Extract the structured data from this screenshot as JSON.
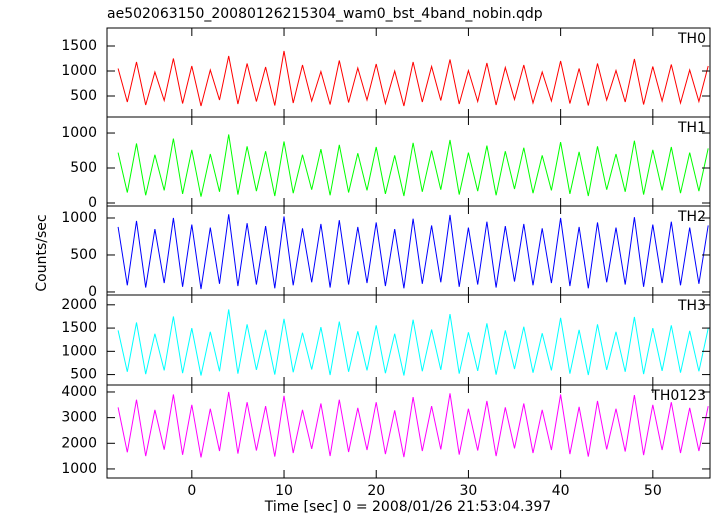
{
  "chart_data": [
    {
      "type": "line",
      "title": "ae502063150_20080126215304_wam0_bst_4band_nobin.qdp",
      "x": [
        -8,
        -7,
        -6,
        -5,
        -4,
        -3,
        -2,
        -1,
        0,
        1,
        2,
        3,
        4,
        5,
        6,
        7,
        8,
        9,
        10,
        11,
        12,
        13,
        14,
        15,
        16,
        17,
        18,
        19,
        20,
        21,
        22,
        23,
        24,
        25,
        26,
        27,
        28,
        29,
        30,
        31,
        32,
        33,
        34,
        35,
        36,
        37,
        38,
        39,
        40,
        41,
        42,
        43,
        44,
        45,
        46,
        47,
        48,
        49,
        50,
        51,
        52,
        53,
        54,
        55,
        56
      ],
      "series": [
        {
          "name": "TH0",
          "color": "#ff0000",
          "values": [
            1050,
            380,
            1180,
            320,
            980,
            410,
            1250,
            350,
            1100,
            300,
            1020,
            420,
            1300,
            340,
            1150,
            390,
            1080,
            310,
            1400,
            360,
            1120,
            400,
            990,
            330,
            1210,
            370,
            1060,
            420,
            1140,
            350,
            1000,
            300,
            1180,
            380,
            1090,
            410,
            1230,
            340,
            1010,
            390,
            1160,
            320,
            1070,
            430,
            1120,
            360,
            980,
            400,
            1200,
            350,
            1050,
            310,
            1150,
            420,
            1010,
            380,
            1240,
            330,
            1090,
            400,
            1130,
            360,
            1020,
            390,
            1100
          ]
        }
      ],
      "xlim": [
        -9.2,
        56.2
      ],
      "ylim": [
        80,
        1860
      ],
      "yticks": [
        500,
        1000,
        1500
      ]
    },
    {
      "type": "line",
      "x": [
        -8,
        -7,
        -6,
        -5,
        -4,
        -3,
        -2,
        -1,
        0,
        1,
        2,
        3,
        4,
        5,
        6,
        7,
        8,
        9,
        10,
        11,
        12,
        13,
        14,
        15,
        16,
        17,
        18,
        19,
        20,
        21,
        22,
        23,
        24,
        25,
        26,
        27,
        28,
        29,
        30,
        31,
        32,
        33,
        34,
        35,
        36,
        37,
        38,
        39,
        40,
        41,
        42,
        43,
        44,
        45,
        46,
        47,
        48,
        49,
        50,
        51,
        52,
        53,
        54,
        55,
        56
      ],
      "series": [
        {
          "name": "TH1",
          "color": "#00ff00",
          "values": [
            720,
            150,
            850,
            110,
            690,
            180,
            920,
            130,
            760,
            90,
            700,
            160,
            980,
            120,
            810,
            170,
            740,
            100,
            880,
            140,
            690,
            190,
            770,
            110,
            830,
            150,
            710,
            180,
            800,
            130,
            680,
            100,
            860,
            160,
            750,
            190,
            900,
            120,
            720,
            170,
            820,
            110,
            740,
            200,
            790,
            140,
            680,
            180,
            870,
            130,
            730,
            100,
            810,
            190,
            700,
            160,
            890,
            120,
            760,
            180,
            800,
            140,
            720,
            170,
            780
          ]
        }
      ],
      "xlim": [
        -9.2,
        56.2
      ],
      "ylim": [
        -43,
        1229
      ],
      "yticks": [
        0,
        500,
        1000
      ]
    },
    {
      "type": "line",
      "ylabel": "Counts/sec",
      "x": [
        -8,
        -7,
        -6,
        -5,
        -4,
        -3,
        -2,
        -1,
        0,
        1,
        2,
        3,
        4,
        5,
        6,
        7,
        8,
        9,
        10,
        11,
        12,
        13,
        14,
        15,
        16,
        17,
        18,
        19,
        20,
        21,
        22,
        23,
        24,
        25,
        26,
        27,
        28,
        29,
        30,
        31,
        32,
        33,
        34,
        35,
        36,
        37,
        38,
        39,
        40,
        41,
        42,
        43,
        44,
        45,
        46,
        47,
        48,
        49,
        50,
        51,
        52,
        53,
        54,
        55,
        56
      ],
      "series": [
        {
          "name": "TH2",
          "color": "#0000ff",
          "values": [
            880,
            90,
            960,
            60,
            850,
            120,
            1000,
            70,
            910,
            40,
            870,
            110,
            1050,
            80,
            930,
            100,
            890,
            50,
            1020,
            90,
            860,
            130,
            920,
            60,
            970,
            100,
            880,
            120,
            940,
            80,
            850,
            50,
            990,
            110,
            900,
            130,
            1040,
            70,
            870,
            100,
            950,
            60,
            890,
            140,
            920,
            90,
            860,
            120,
            1000,
            80,
            880,
            50,
            940,
            130,
            870,
            100,
            1010,
            70,
            910,
            120,
            950,
            90,
            870,
            110,
            900
          ]
        }
      ],
      "xlim": [
        -9.2,
        56.2
      ],
      "ylim": [
        -41,
        1162
      ],
      "yticks": [
        0,
        500,
        1000
      ]
    },
    {
      "type": "line",
      "x": [
        -8,
        -7,
        -6,
        -5,
        -4,
        -3,
        -2,
        -1,
        0,
        1,
        2,
        3,
        4,
        5,
        6,
        7,
        8,
        9,
        10,
        11,
        12,
        13,
        14,
        15,
        16,
        17,
        18,
        19,
        20,
        21,
        22,
        23,
        24,
        25,
        26,
        27,
        28,
        29,
        30,
        31,
        32,
        33,
        34,
        35,
        36,
        37,
        38,
        39,
        40,
        41,
        42,
        43,
        44,
        45,
        46,
        47,
        48,
        49,
        50,
        51,
        52,
        53,
        54,
        55,
        56
      ],
      "series": [
        {
          "name": "TH3",
          "color": "#00ffff",
          "values": [
            1450,
            560,
            1620,
            510,
            1380,
            590,
            1750,
            530,
            1500,
            480,
            1420,
            570,
            1900,
            520,
            1580,
            600,
            1460,
            500,
            1700,
            550,
            1400,
            610,
            1520,
            490,
            1640,
            560,
            1430,
            590,
            1560,
            530,
            1380,
            480,
            1680,
            570,
            1470,
            600,
            1800,
            520,
            1410,
            580,
            1600,
            500,
            1450,
            620,
            1530,
            540,
            1390,
            590,
            1720,
            520,
            1460,
            490,
            1580,
            600,
            1420,
            560,
            1740,
            510,
            1500,
            580,
            1560,
            540,
            1440,
            570,
            1490
          ]
        }
      ],
      "xlim": [
        -9.2,
        56.2
      ],
      "ylim": [
        276,
        2211
      ],
      "yticks": [
        500,
        1000,
        1500,
        2000
      ]
    },
    {
      "type": "line",
      "xlabel": "Time [sec] 0 = 2008/01/26 21:53:04.397",
      "x": [
        -8,
        -7,
        -6,
        -5,
        -4,
        -3,
        -2,
        -1,
        0,
        1,
        2,
        3,
        4,
        5,
        6,
        7,
        8,
        9,
        10,
        11,
        12,
        13,
        14,
        15,
        16,
        17,
        18,
        19,
        20,
        21,
        22,
        23,
        24,
        25,
        26,
        27,
        28,
        29,
        30,
        31,
        32,
        33,
        34,
        35,
        36,
        37,
        38,
        39,
        40,
        41,
        42,
        43,
        44,
        45,
        46,
        47,
        48,
        49,
        50,
        51,
        52,
        53,
        54,
        55,
        56
      ],
      "series": [
        {
          "name": "TH0123",
          "color": "#ff00ff",
          "values": [
            3400,
            1650,
            3700,
            1500,
            3300,
            1750,
            3900,
            1550,
            3500,
            1450,
            3350,
            1700,
            4000,
            1600,
            3600,
            1720,
            3450,
            1480,
            3850,
            1620,
            3300,
            1780,
            3550,
            1500,
            3700,
            1660,
            3380,
            1740,
            3600,
            1580,
            3280,
            1460,
            3800,
            1700,
            3450,
            1760,
            3950,
            1560,
            3350,
            1720,
            3650,
            1500,
            3400,
            1800,
            3550,
            1620,
            3300,
            1740,
            3900,
            1580,
            3420,
            1480,
            3650,
            1760,
            3350,
            1680,
            3880,
            1540,
            3500,
            1740,
            3600,
            1620,
            3380,
            1700,
            3450
          ]
        }
      ],
      "xlim": [
        -9.2,
        56.2
      ],
      "ylim": [
        647,
        4272
      ],
      "yticks": [
        1000,
        2000,
        3000,
        4000
      ],
      "xticks": [
        0,
        10,
        20,
        30,
        40,
        50
      ]
    }
  ]
}
